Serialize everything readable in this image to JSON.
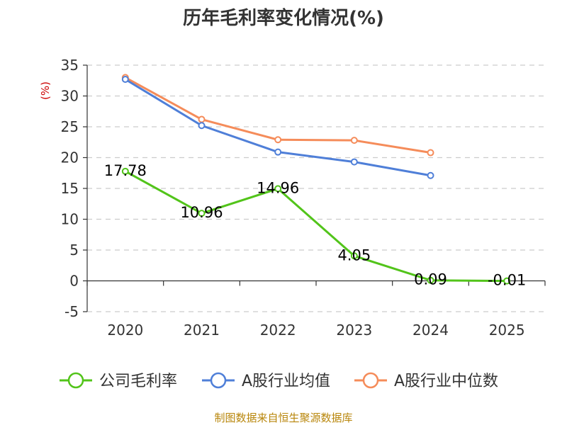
{
  "chart_data": {
    "type": "line",
    "title": "历年毛利率变化情况(%)",
    "ylabel": "(%)",
    "xlabel": "",
    "categories": [
      "2020",
      "2021",
      "2022",
      "2023",
      "2024",
      "2025"
    ],
    "yticks": [
      "35",
      "30",
      "25",
      "20",
      "15",
      "10",
      "5",
      "0",
      "-5"
    ],
    "ylim": [
      -5,
      35
    ],
    "grid": true,
    "legend_position": "bottom",
    "series": [
      {
        "name": "公司毛利率",
        "color": "#52c41a",
        "values": [
          17.78,
          10.96,
          14.96,
          4.05,
          0.09,
          -0.01
        ],
        "labels": [
          "17.78",
          "10.96",
          "14.96",
          "4.05",
          "0.09",
          "-0.01"
        ]
      },
      {
        "name": "A股行业均值",
        "color": "#4f7fd8",
        "values": [
          32.7,
          25.2,
          20.9,
          19.3,
          17.1,
          null
        ]
      },
      {
        "name": "A股行业中位数",
        "color": "#f58c5a",
        "values": [
          33.0,
          26.2,
          22.9,
          22.8,
          20.8,
          null
        ]
      }
    ],
    "source": "制图数据来自恒生聚源数据库"
  }
}
